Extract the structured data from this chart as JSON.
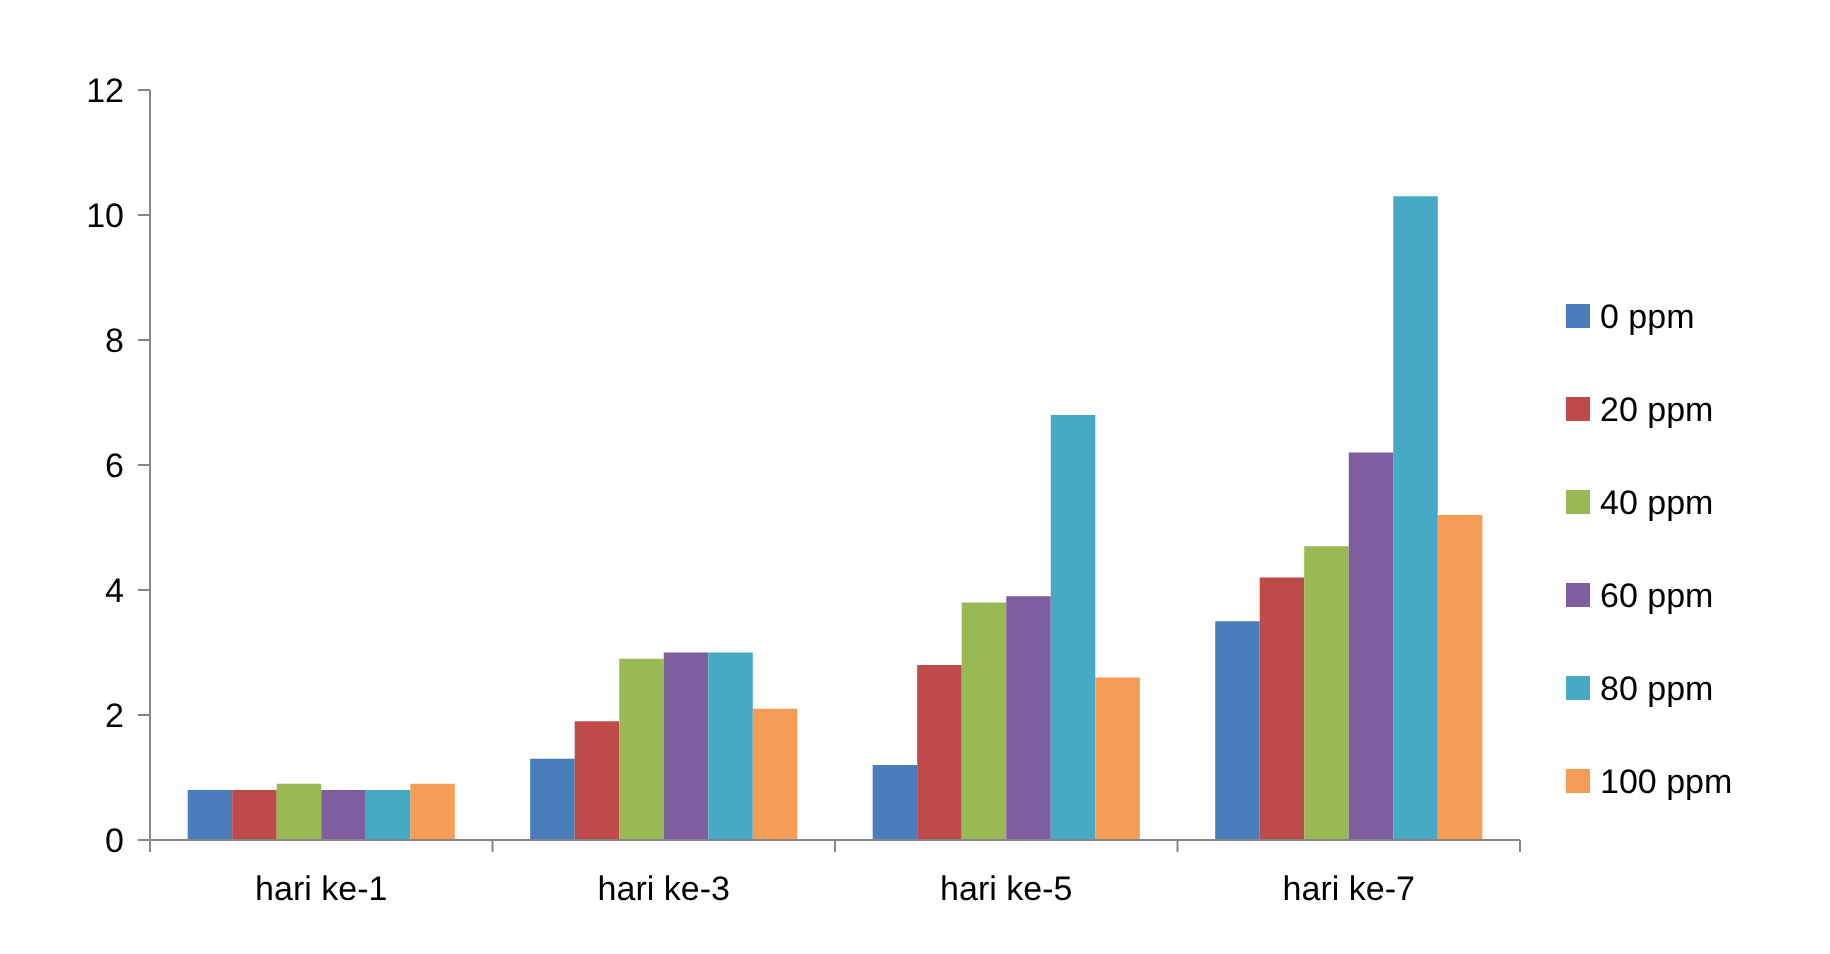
{
  "chart_data": {
    "type": "bar",
    "categories": [
      "hari ke-1",
      "hari ke-3",
      "hari ke-5",
      "hari ke-7"
    ],
    "series": [
      {
        "name": "0 ppm",
        "color": "#4a7ebb",
        "values": [
          0.8,
          1.3,
          1.2,
          3.5
        ]
      },
      {
        "name": "20 ppm",
        "color": "#be4b48",
        "values": [
          0.8,
          1.9,
          2.8,
          4.2
        ]
      },
      {
        "name": "40 ppm",
        "color": "#98b954",
        "values": [
          0.9,
          2.9,
          3.8,
          4.7
        ]
      },
      {
        "name": "60 ppm",
        "color": "#7d5fa0",
        "values": [
          0.8,
          3.0,
          3.9,
          6.2
        ]
      },
      {
        "name": "80 ppm",
        "color": "#46aac5",
        "values": [
          0.8,
          3.0,
          6.8,
          10.3
        ]
      },
      {
        "name": "100 ppm",
        "color": "#f59d56",
        "values": [
          0.9,
          2.1,
          2.6,
          5.2
        ]
      }
    ],
    "ylim": [
      0,
      12
    ],
    "yticks": [
      0,
      2,
      4,
      6,
      8,
      10,
      12
    ],
    "grid": false,
    "legend": "right"
  }
}
